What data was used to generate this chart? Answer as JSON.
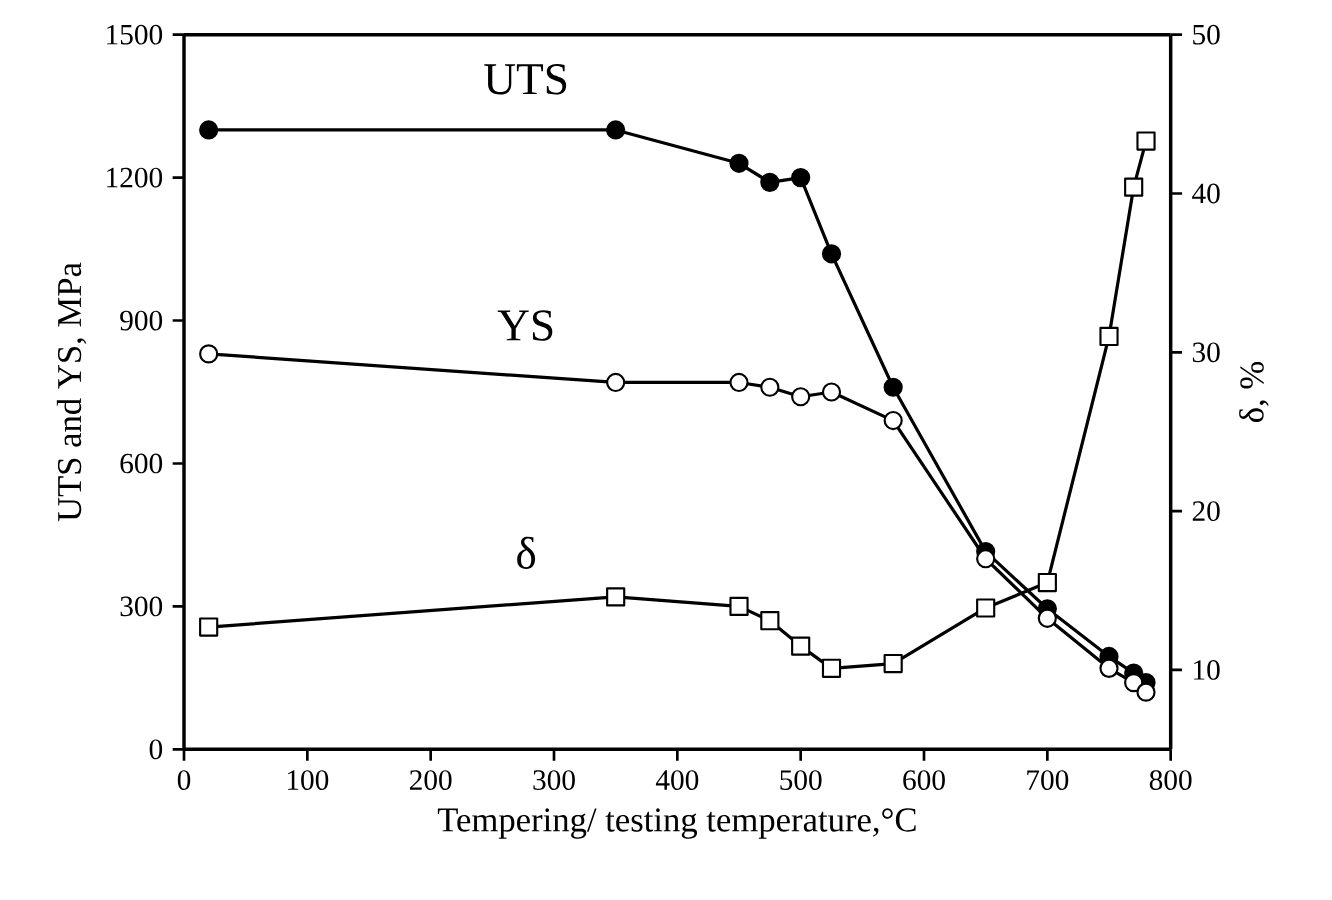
{
  "chart_data": {
    "type": "line",
    "xlabel": "Tempering/ testing temperature,°C",
    "ylabel": "UTS and YS, MPa",
    "y2label": "δ, %",
    "x": [
      20,
      350,
      450,
      475,
      500,
      525,
      575,
      650,
      700,
      750,
      770,
      780
    ],
    "series": [
      {
        "name": "UTS",
        "color": "#000000",
        "marker": "circle",
        "values": [
          1300,
          1300,
          1230,
          1190,
          1200,
          1040,
          760,
          415,
          295,
          195,
          160,
          140
        ]
      },
      {
        "name": "YS",
        "color": "#000000",
        "marker": "circle",
        "values": [
          830,
          770,
          770,
          760,
          740,
          750,
          690,
          400,
          275,
          170,
          140,
          120
        ]
      },
      {
        "name": "δ",
        "color": "#000000",
        "marker": "square",
        "axis": "y2",
        "values": [
          12.7,
          14.6,
          14.0,
          13.1,
          11.5,
          10.1,
          10.4,
          13.9,
          15.5,
          31,
          40.4,
          43.3
        ]
      }
    ],
    "xlim": [
      0,
      800
    ],
    "xticks": [
      0,
      100,
      200,
      300,
      400,
      500,
      600,
      700,
      800
    ],
    "ylim": [
      0,
      1500
    ],
    "yticks": [
      0,
      300,
      600,
      900,
      1200,
      1500
    ],
    "y2lim": [
      5,
      50
    ],
    "y2ticks": [
      10,
      20,
      30,
      40,
      50
    ],
    "grid": false,
    "line_style": "solid"
  }
}
